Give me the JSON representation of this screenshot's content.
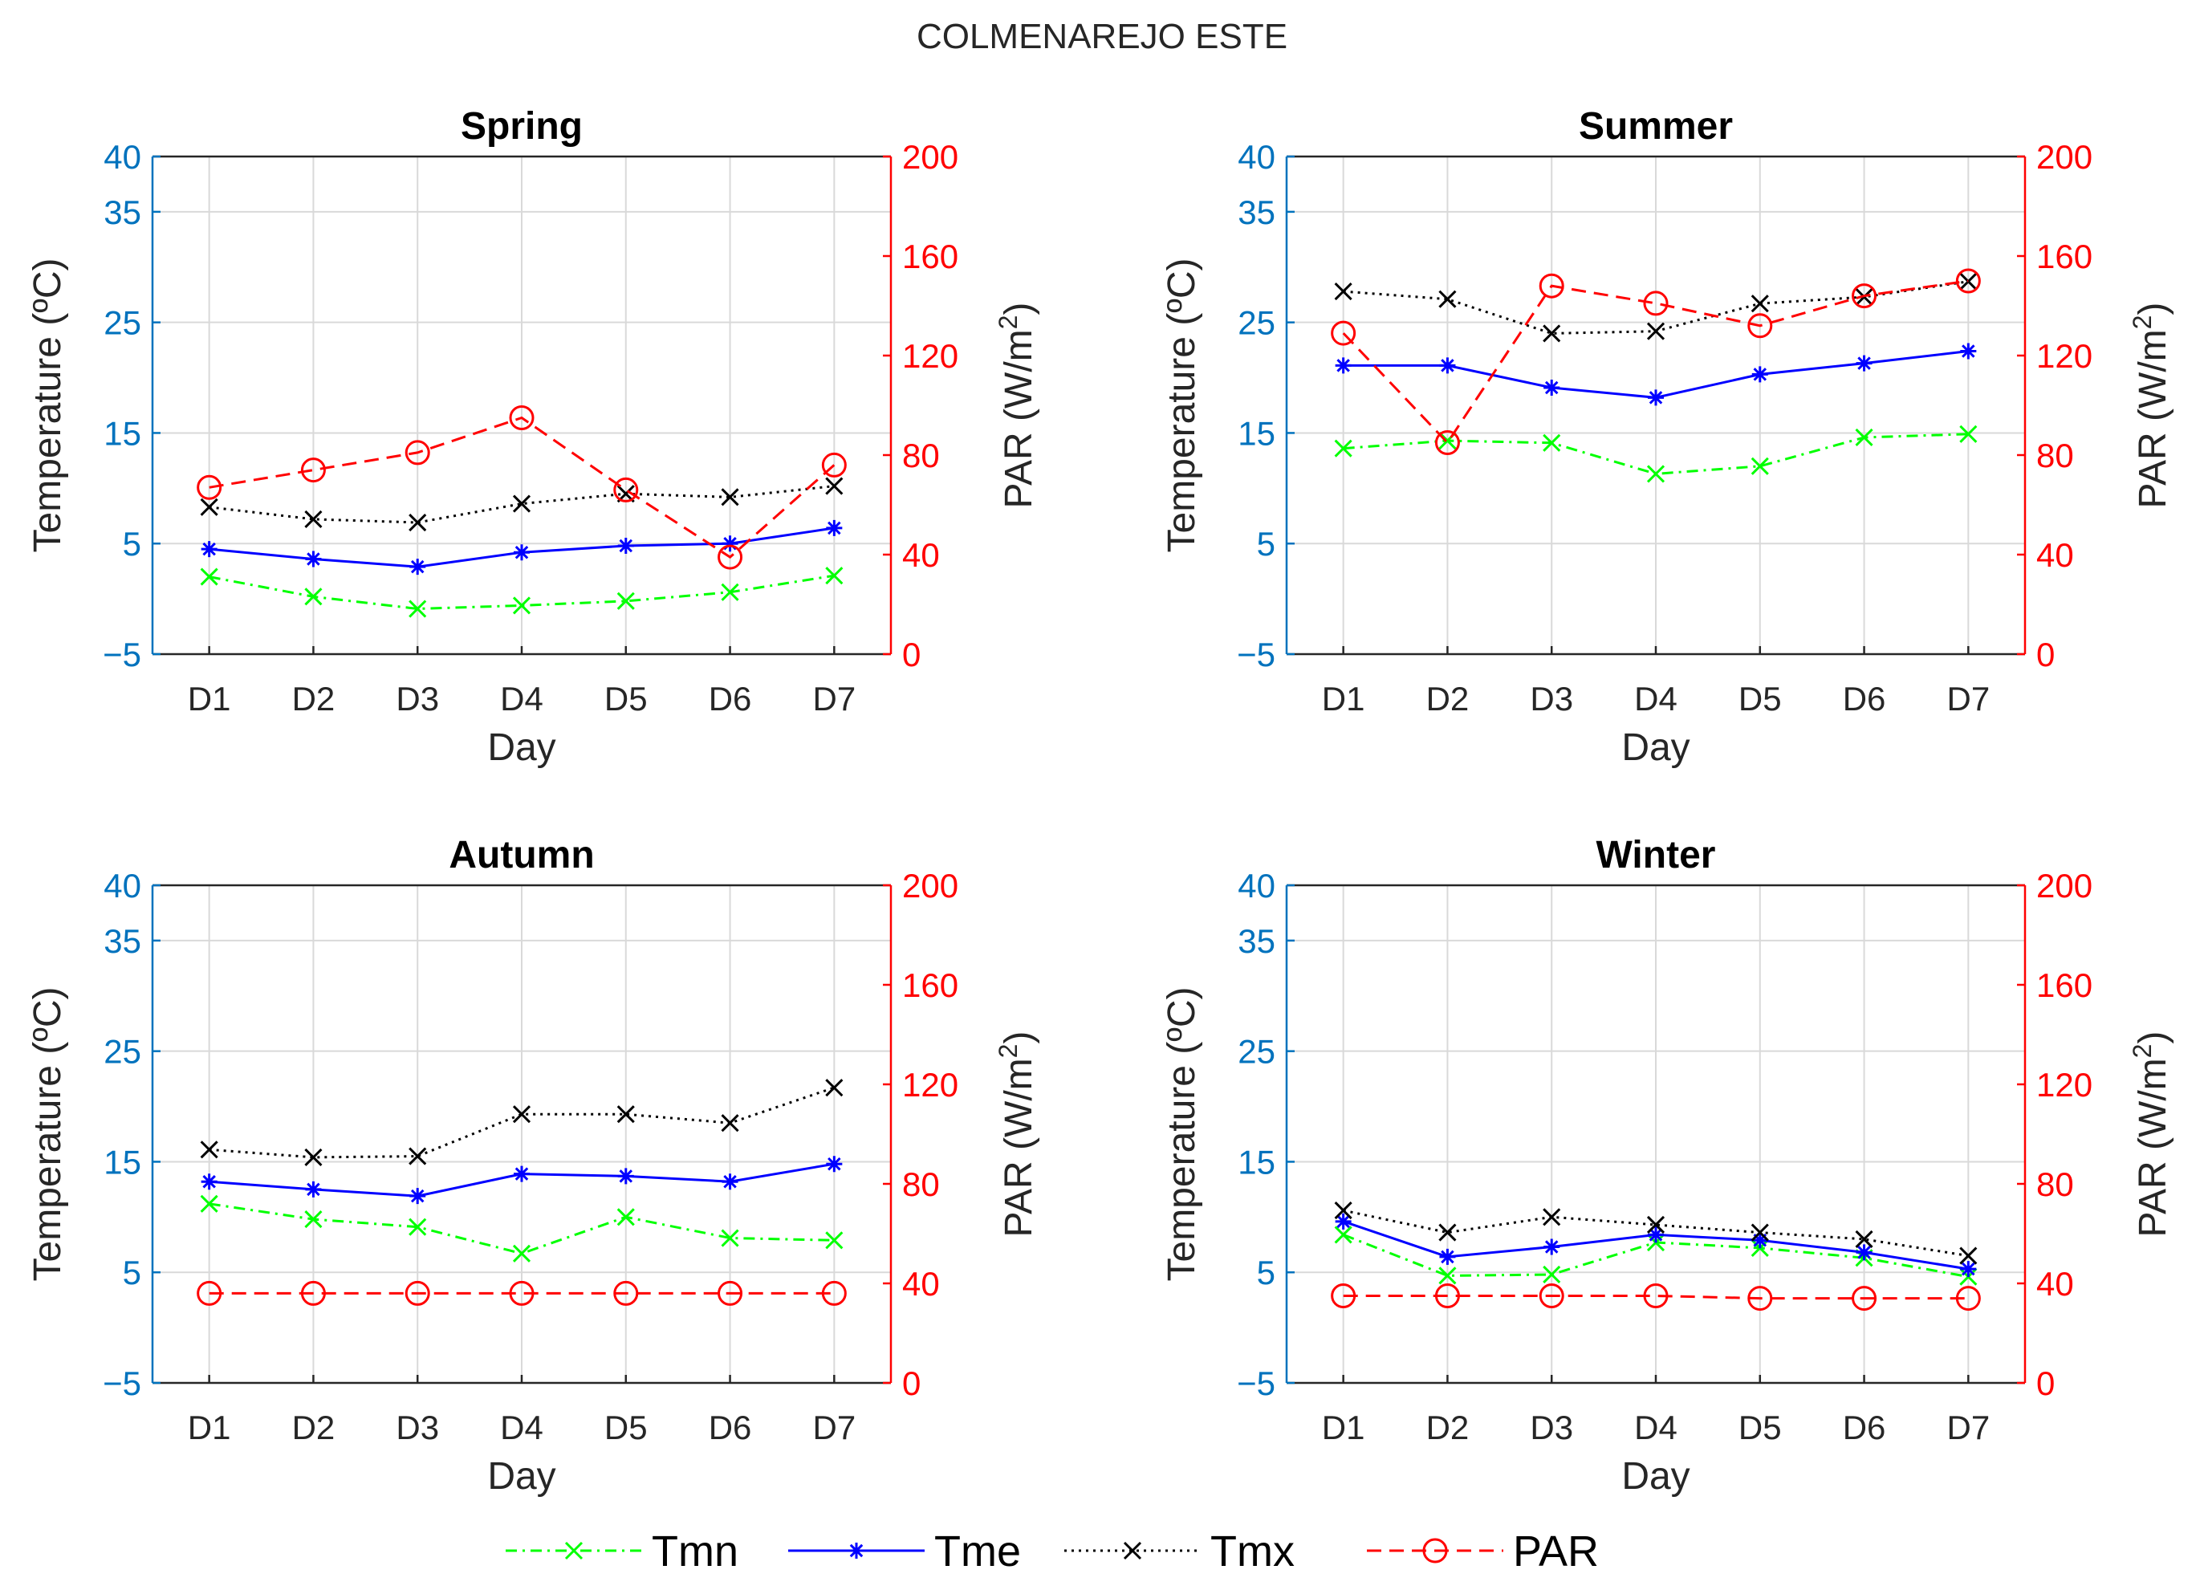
{
  "chart_data": {
    "type": "line",
    "title": "COLMENAREJO ESTE",
    "categories": [
      "D1",
      "D2",
      "D3",
      "D4",
      "D5",
      "D6",
      "D7"
    ],
    "xlabel": "Day",
    "ylabel_left": "Temperature (ºC)",
    "ylabel_right": "PAR (W/m",
    "ylabel_right_sup": "2",
    "ylabel_right_close": ")",
    "ylim_left": [
      -5,
      40
    ],
    "yticks_left": [
      -5,
      5,
      15,
      25,
      35,
      40
    ],
    "ylim_right": [
      0,
      200
    ],
    "yticks_right": [
      0,
      40,
      80,
      120,
      160,
      200
    ],
    "grid": true,
    "legend": {
      "position": "bottom",
      "entries": [
        {
          "key": "Tmn",
          "label": "Tmn"
        },
        {
          "key": "Tme",
          "label": "Tme"
        },
        {
          "key": "Tmx",
          "label": "Tmx"
        },
        {
          "key": "PAR",
          "label": "PAR"
        }
      ]
    },
    "styles": {
      "Tmn": {
        "color": "#00FF00",
        "dash": "dashdot",
        "marker": "x",
        "axis": "left"
      },
      "Tme": {
        "color": "#0000FF",
        "dash": "solid",
        "marker": "star",
        "axis": "left"
      },
      "Tmx": {
        "color": "#000000",
        "dash": "dot",
        "marker": "x",
        "axis": "left"
      },
      "PAR": {
        "color": "#FF0000",
        "dash": "dash",
        "marker": "circle",
        "axis": "right"
      }
    },
    "panels": [
      {
        "title": "Spring",
        "series": {
          "Tmn": [
            2.0,
            0.2,
            -0.9,
            -0.6,
            -0.2,
            0.6,
            2.1
          ],
          "Tme": [
            4.5,
            3.6,
            2.9,
            4.2,
            4.8,
            5.0,
            6.4
          ],
          "Tmx": [
            8.3,
            7.2,
            6.9,
            8.6,
            9.5,
            9.2,
            10.2
          ],
          "PAR": [
            67,
            74,
            81,
            95,
            66,
            39,
            76
          ]
        }
      },
      {
        "title": "Summer",
        "series": {
          "Tmn": [
            13.6,
            14.3,
            14.1,
            11.3,
            12.0,
            14.6,
            14.9
          ],
          "Tme": [
            21.1,
            21.1,
            19.1,
            18.2,
            20.3,
            21.3,
            22.4
          ],
          "Tmx": [
            27.8,
            27.1,
            24.0,
            24.2,
            26.7,
            27.3,
            28.7
          ],
          "PAR": [
            129,
            85,
            148,
            141,
            132,
            144,
            150
          ]
        }
      },
      {
        "title": "Autumn",
        "series": {
          "Tmn": [
            11.2,
            9.8,
            9.1,
            6.7,
            10.0,
            8.1,
            7.9
          ],
          "Tme": [
            13.2,
            12.5,
            11.9,
            13.9,
            13.7,
            13.2,
            14.8
          ],
          "Tmx": [
            16.1,
            15.4,
            15.5,
            19.3,
            19.3,
            18.5,
            21.7
          ],
          "PAR": [
            36,
            36,
            36,
            36,
            36,
            36,
            36
          ]
        }
      },
      {
        "title": "Winter",
        "series": {
          "Tmn": [
            8.4,
            4.7,
            4.8,
            7.7,
            7.2,
            6.3,
            4.6
          ],
          "Tme": [
            9.6,
            6.4,
            7.3,
            8.4,
            7.9,
            6.8,
            5.3
          ],
          "Tmx": [
            10.6,
            8.6,
            10.0,
            9.3,
            8.6,
            8.0,
            6.5
          ],
          "PAR": [
            35,
            35,
            35,
            35,
            34,
            34,
            34
          ]
        }
      }
    ]
  }
}
